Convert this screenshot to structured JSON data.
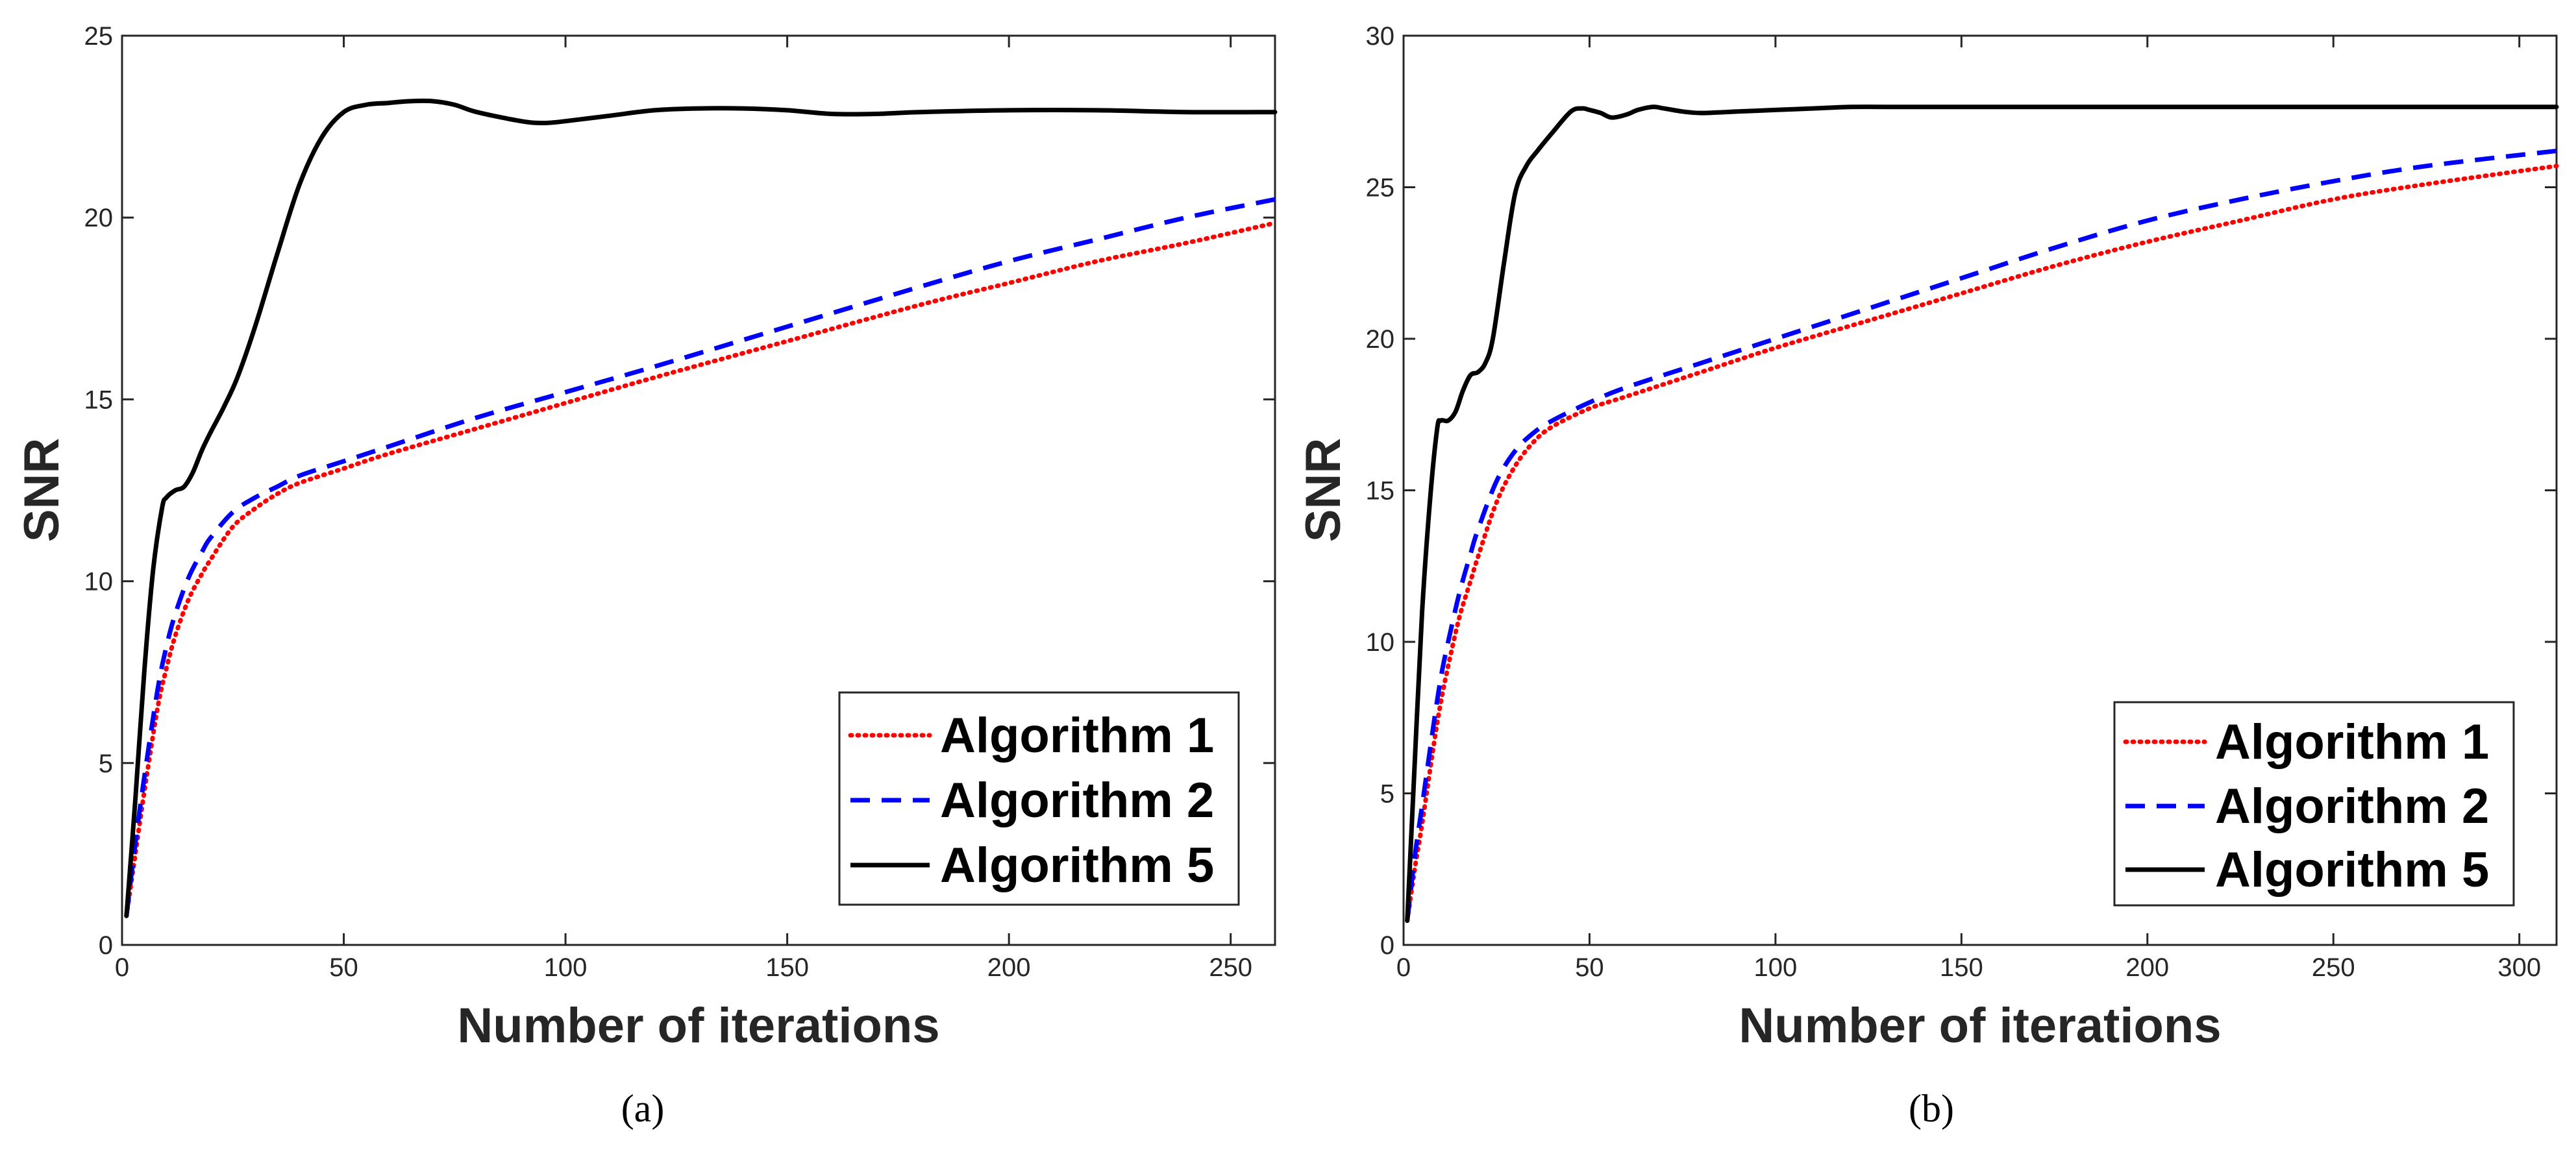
{
  "chart_data": [
    {
      "type": "line",
      "caption": "(a)",
      "title": "",
      "xlabel": "Number of iterations",
      "ylabel": "SNR",
      "xlim": [
        0,
        260
      ],
      "ylim": [
        0,
        25
      ],
      "xticks": [
        0,
        50,
        100,
        150,
        200,
        250
      ],
      "yticks": [
        0,
        5,
        10,
        15,
        20,
        25
      ],
      "grid": false,
      "legend_position": "bottom-right",
      "series": [
        {
          "name": "Algorithm 1",
          "color": "#ff0000",
          "style": "dotted",
          "x": [
            1,
            3,
            5,
            8,
            10,
            12,
            15,
            18,
            20,
            25,
            30,
            35,
            40,
            50,
            60,
            80,
            100,
            120,
            150,
            180,
            200,
            220,
            240,
            260
          ],
          "y": [
            0.8,
            2.5,
            4.2,
            6.5,
            7.6,
            8.5,
            9.5,
            10.2,
            10.6,
            11.5,
            12.0,
            12.4,
            12.7,
            13.1,
            13.5,
            14.2,
            14.9,
            15.6,
            16.6,
            17.6,
            18.2,
            18.8,
            19.3,
            19.85
          ]
        },
        {
          "name": "Algorithm 2",
          "color": "#0000ff",
          "style": "dashed",
          "x": [
            1,
            3,
            5,
            8,
            10,
            12,
            15,
            18,
            20,
            25,
            30,
            35,
            40,
            50,
            60,
            80,
            100,
            120,
            150,
            180,
            200,
            220,
            240,
            260
          ],
          "y": [
            0.8,
            2.8,
            4.6,
            7.0,
            8.2,
            9.1,
            10.1,
            10.8,
            11.2,
            11.9,
            12.3,
            12.6,
            12.9,
            13.3,
            13.7,
            14.5,
            15.2,
            15.9,
            17.0,
            18.1,
            18.8,
            19.4,
            20.0,
            20.5
          ]
        },
        {
          "name": "Algorithm 5",
          "color": "#000000",
          "style": "solid",
          "x": [
            1,
            3,
            5,
            7,
            9,
            10,
            12,
            14,
            16,
            18,
            20,
            23,
            26,
            30,
            35,
            40,
            45,
            50,
            55,
            60,
            65,
            70,
            75,
            80,
            90,
            95,
            100,
            110,
            120,
            130,
            140,
            150,
            160,
            170,
            180,
            200,
            220,
            240,
            260
          ],
          "y": [
            0.8,
            4.0,
            7.5,
            10.3,
            12.0,
            12.3,
            12.5,
            12.6,
            13.0,
            13.6,
            14.1,
            14.8,
            15.6,
            17.0,
            19.0,
            20.9,
            22.2,
            22.9,
            23.1,
            23.15,
            23.2,
            23.2,
            23.1,
            22.9,
            22.65,
            22.6,
            22.65,
            22.8,
            22.95,
            23.0,
            23.0,
            22.95,
            22.85,
            22.85,
            22.9,
            22.95,
            22.95,
            22.9,
            22.9
          ]
        }
      ]
    },
    {
      "type": "line",
      "caption": "(b)",
      "title": "",
      "xlabel": "Number of iterations",
      "ylabel": "SNR",
      "xlim": [
        0,
        310
      ],
      "ylim": [
        0,
        30
      ],
      "xticks": [
        0,
        50,
        100,
        150,
        200,
        250,
        300
      ],
      "yticks": [
        0,
        5,
        10,
        15,
        20,
        25,
        30
      ],
      "grid": false,
      "legend_position": "bottom-right",
      "series": [
        {
          "name": "Algorithm 1",
          "color": "#ff0000",
          "style": "dotted",
          "x": [
            1,
            3,
            5,
            8,
            10,
            12,
            15,
            18,
            20,
            25,
            30,
            35,
            40,
            50,
            60,
            80,
            100,
            125,
            150,
            175,
            200,
            225,
            250,
            275,
            310
          ],
          "y": [
            0.8,
            2.5,
            4.0,
            6.5,
            8.0,
            9.2,
            10.8,
            12.0,
            12.8,
            14.6,
            15.8,
            16.6,
            17.1,
            17.7,
            18.1,
            18.9,
            19.7,
            20.6,
            21.5,
            22.4,
            23.2,
            23.9,
            24.6,
            25.1,
            25.7
          ]
        },
        {
          "name": "Algorithm 2",
          "color": "#0000ff",
          "style": "dashed",
          "x": [
            1,
            3,
            5,
            8,
            10,
            12,
            15,
            18,
            20,
            25,
            30,
            35,
            40,
            50,
            60,
            80,
            100,
            125,
            150,
            175,
            200,
            225,
            250,
            275,
            310
          ],
          "y": [
            0.8,
            2.9,
            4.6,
            7.2,
            8.8,
            10.0,
            11.6,
            12.9,
            13.7,
            15.3,
            16.3,
            16.9,
            17.3,
            17.9,
            18.4,
            19.2,
            20.0,
            21.0,
            22.0,
            23.0,
            23.9,
            24.6,
            25.2,
            25.7,
            26.2
          ]
        },
        {
          "name": "Algorithm 5",
          "color": "#000000",
          "style": "solid",
          "x": [
            1,
            3,
            5,
            7,
            9,
            10,
            12,
            14,
            16,
            18,
            20,
            22,
            24,
            27,
            30,
            33,
            36,
            40,
            45,
            48,
            50,
            53,
            56,
            60,
            63,
            67,
            70,
            75,
            80,
            90,
            100,
            110,
            120,
            130,
            150,
            175,
            200,
            250,
            310
          ],
          "y": [
            0.8,
            6.0,
            11.0,
            14.5,
            17.0,
            17.3,
            17.3,
            17.6,
            18.3,
            18.8,
            18.9,
            19.2,
            20.0,
            22.5,
            24.8,
            25.7,
            26.2,
            26.8,
            27.5,
            27.6,
            27.55,
            27.45,
            27.3,
            27.4,
            27.55,
            27.65,
            27.6,
            27.5,
            27.45,
            27.5,
            27.55,
            27.6,
            27.65,
            27.65,
            27.65,
            27.65,
            27.65,
            27.65,
            27.65
          ]
        }
      ]
    }
  ]
}
